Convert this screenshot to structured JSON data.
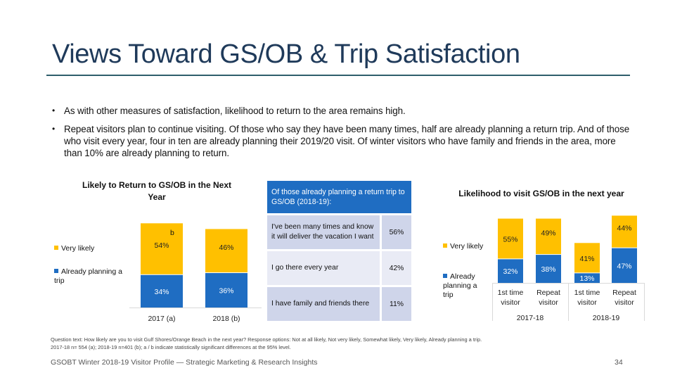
{
  "slide": {
    "title": "Views Toward GS/OB & Trip Satisfaction",
    "bullet_glyph": "•",
    "bullets": [
      "As with other measures of satisfaction, likelihood to return to the area remains high.",
      "Repeat visitors plan to continue visiting. Of those who say they have been many times, half are already planning a return trip. And of those who visit every year, four in ten are already planning their 2019/20 visit. Of winter visitors who have family and friends in the area, more than 10% are already planning to return."
    ],
    "note_lines": [
      "Question text: How likely are you to visit Gulf Shores/Orange Beach in the next year? Response options: Not at all likely, Not very likely, Somewhat likely, Very likely, Already planning a trip.",
      "2017-18 n= 554 (a); 2018-19 n=401 (b); a / b indicate statistically significant differences at the 95% level."
    ],
    "footer": "GSOBT Winter 2018-19 Visitor Profile — Strategic Marketing & Research Insights",
    "page_number": "34"
  },
  "colors": {
    "very_likely": "#ffc000",
    "already_planning": "#1f6dc2",
    "title": "#1f3a5a",
    "rule": "#2e5e6b"
  },
  "table": {
    "header": "Of those already planning a return trip to GS/OB (2018-19):",
    "rows": [
      {
        "label": "I've been many times and know it will deliver the vacation I want",
        "value": "56%"
      },
      {
        "label": "I go there every year",
        "value": "42%"
      },
      {
        "label": "I have family and friends there",
        "value": "11%"
      }
    ]
  },
  "chart_data": [
    {
      "type": "bar",
      "stacked": true,
      "title": "Likely to Return to GS/OB in the Next Year",
      "categories": [
        "2017 (a)",
        "2018 (b)"
      ],
      "series": [
        {
          "name": "Already planning a trip",
          "values": [
            34,
            36
          ],
          "labels": [
            "34%",
            "36%"
          ]
        },
        {
          "name": "Very likely",
          "values": [
            54,
            46
          ],
          "labels": [
            "54%",
            "46%"
          ]
        }
      ],
      "annotations": [
        {
          "category": "2017 (a)",
          "text": "b"
        }
      ],
      "legend": [
        "Very likely",
        "Already planning a trip"
      ],
      "legend_position": "left",
      "ylim": [
        0,
        100
      ],
      "grid": false
    },
    {
      "type": "bar",
      "stacked": true,
      "title": "Likelihood to visit GS/OB in the next year",
      "groups": [
        "2017-18",
        "2018-19"
      ],
      "categories": [
        "1st time visitor",
        "Repeat visitor",
        "1st time visitor",
        "Repeat visitor"
      ],
      "category_lines": [
        [
          "1st time",
          "visitor"
        ],
        [
          "Repeat",
          "visitor"
        ],
        [
          "1st time",
          "visitor"
        ],
        [
          "Repeat",
          "visitor"
        ]
      ],
      "series": [
        {
          "name": "Already planning a trip",
          "values": [
            32,
            38,
            13,
            47
          ],
          "labels": [
            "32%",
            "38%",
            "13%",
            "47%"
          ]
        },
        {
          "name": "Very likely",
          "values": [
            55,
            49,
            41,
            44
          ],
          "labels": [
            "55%",
            "49%",
            "41%",
            "44%"
          ]
        }
      ],
      "legend": [
        "Very likely",
        "Already planning a trip"
      ],
      "legend_position": "left",
      "ylim": [
        0,
        100
      ],
      "grid": false
    }
  ]
}
